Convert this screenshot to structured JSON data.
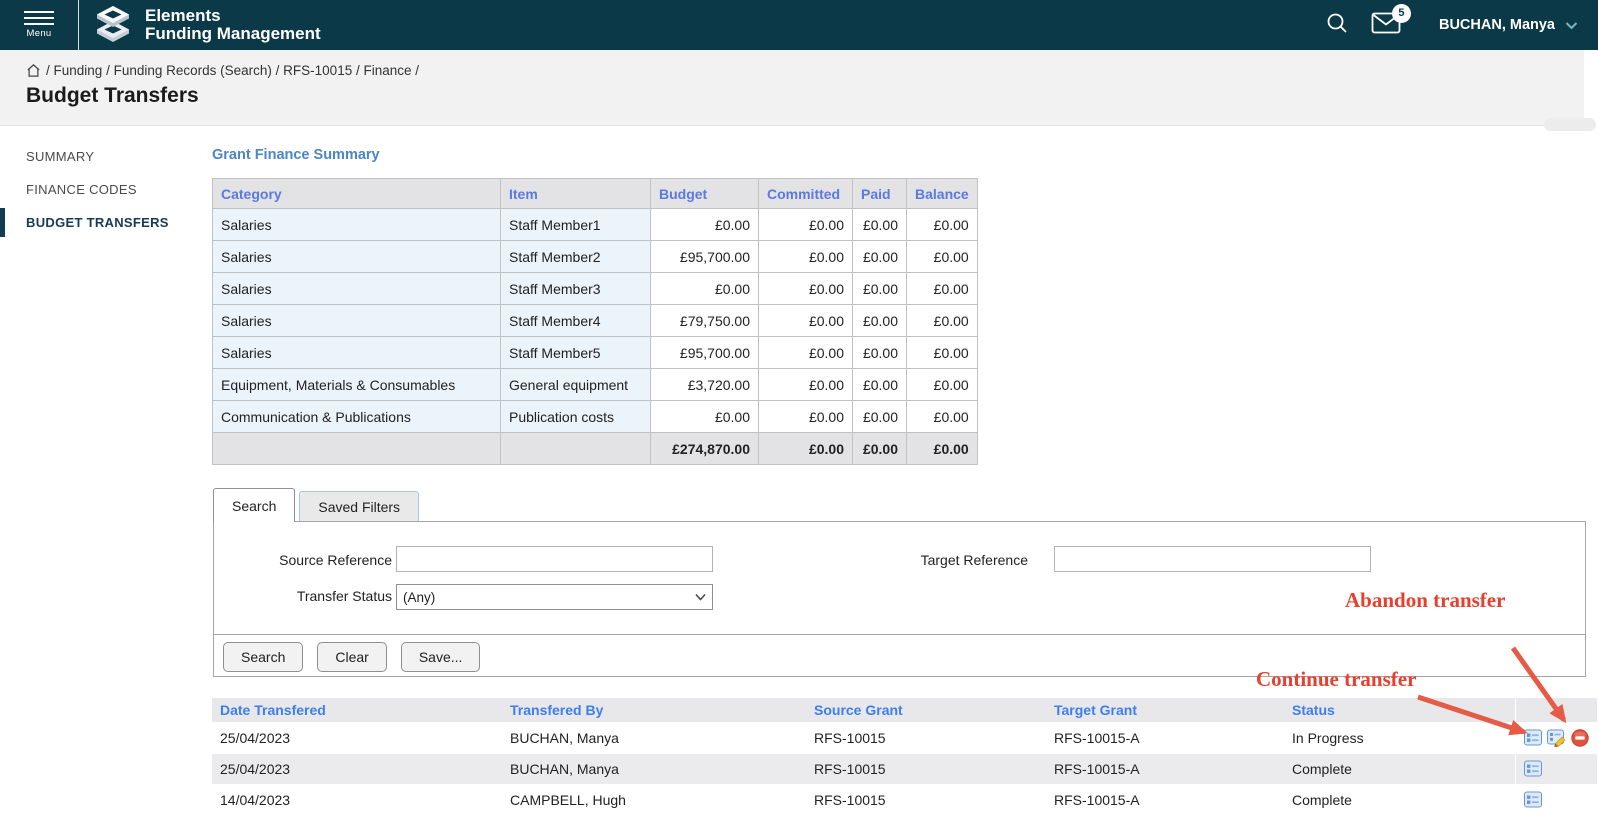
{
  "header": {
    "menu_label": "Menu",
    "brand_line1": "Elements",
    "brand_line2": "Funding Management",
    "notification_count": "5",
    "user_name": "BUCHAN, Manya"
  },
  "breadcrumb": {
    "items": [
      "Funding",
      "Funding Records (Search)",
      "RFS-10015",
      "Finance"
    ],
    "page_title": "Budget Transfers"
  },
  "sidebar": {
    "items": [
      {
        "label": "SUMMARY",
        "active": false
      },
      {
        "label": "FINANCE CODES",
        "active": false
      },
      {
        "label": "BUDGET TRANSFERS",
        "active": true
      }
    ]
  },
  "finance_summary": {
    "title": "Grant Finance Summary",
    "columns": [
      "Category",
      "Item",
      "Budget",
      "Committed",
      "Paid",
      "Balance"
    ],
    "rows": [
      [
        "Salaries",
        "Staff Member1",
        "£0.00",
        "£0.00",
        "£0.00",
        "£0.00"
      ],
      [
        "Salaries",
        "Staff Member2",
        "£95,700.00",
        "£0.00",
        "£0.00",
        "£0.00"
      ],
      [
        "Salaries",
        "Staff Member3",
        "£0.00",
        "£0.00",
        "£0.00",
        "£0.00"
      ],
      [
        "Salaries",
        "Staff Member4",
        "£79,750.00",
        "£0.00",
        "£0.00",
        "£0.00"
      ],
      [
        "Salaries",
        "Staff Member5",
        "£95,700.00",
        "£0.00",
        "£0.00",
        "£0.00"
      ],
      [
        "Equipment, Materials & Consumables",
        "General equipment",
        "£3,720.00",
        "£0.00",
        "£0.00",
        "£0.00"
      ],
      [
        "Communication & Publications",
        "Publication costs",
        "£0.00",
        "£0.00",
        "£0.00",
        "£0.00"
      ]
    ],
    "total_row": [
      "",
      "",
      "£274,870.00",
      "£0.00",
      "£0.00",
      "£0.00"
    ]
  },
  "search_panel": {
    "tabs": [
      {
        "label": "Search",
        "active": true
      },
      {
        "label": "Saved Filters",
        "active": false
      }
    ],
    "source_reference_label": "Source Reference",
    "source_reference_value": "",
    "target_reference_label": "Target Reference",
    "target_reference_value": "",
    "transfer_status_label": "Transfer Status",
    "transfer_status_value": "(Any)",
    "buttons": [
      "Search",
      "Clear",
      "Save..."
    ]
  },
  "results": {
    "columns": [
      "Date Transfered",
      "Transfered By",
      "Source Grant",
      "Target Grant",
      "Status"
    ],
    "rows": [
      {
        "date": "25/04/2023",
        "transfered_by": "BUCHAN, Manya",
        "source_grant": "RFS-10015",
        "target_grant": "RFS-10015-A",
        "status": "In Progress",
        "actions": [
          "view-details",
          "continue-transfer",
          "abandon-transfer"
        ]
      },
      {
        "date": "25/04/2023",
        "transfered_by": "BUCHAN, Manya",
        "source_grant": "RFS-10015",
        "target_grant": "RFS-10015-A",
        "status": "Complete",
        "actions": [
          "view-details"
        ]
      },
      {
        "date": "14/04/2023",
        "transfered_by": "CAMPBELL, Hugh",
        "source_grant": "RFS-10015",
        "target_grant": "RFS-10015-A",
        "status": "Complete",
        "actions": [
          "view-details"
        ]
      }
    ]
  },
  "annotations": {
    "abandon_label": "Abandon transfer",
    "continue_label": "Continue transfer"
  },
  "colors": {
    "header_bg": "#0c3948",
    "summary_header_text": "#5b79e3",
    "results_header_text": "#3d7ef0",
    "summary_title": "#4a86c8",
    "cell_blue_bg": "#ebf3fb",
    "annotation_red": "#e8402f",
    "arrow_red": "#e65b45",
    "active_nav": "#173b57"
  }
}
